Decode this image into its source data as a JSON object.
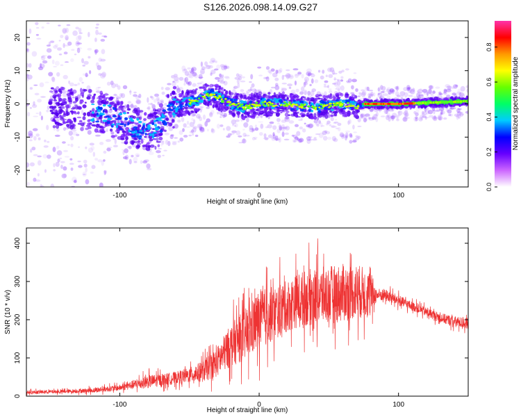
{
  "figure": {
    "title": "S126.2026.098.14.09.G27"
  },
  "chart_data": [
    {
      "type": "heatmap",
      "xlabel": "Height of straight line (km)",
      "ylabel": "Frequency (Hz)",
      "xlim": [
        -167,
        150
      ],
      "ylim": [
        -25,
        25
      ],
      "xticks": [
        -100,
        0,
        100
      ],
      "yticks": [
        -20,
        -10,
        0,
        10,
        20
      ],
      "colorbar": {
        "label": "Normalized spectral amplitude",
        "range": [
          0,
          0.95
        ],
        "ticks": [
          0.0,
          0.2,
          0.4,
          0.6,
          0.8
        ],
        "colors": [
          "#ffffff",
          "#cc66ff",
          "#6600ff",
          "#0000ff",
          "#00ccff",
          "#00ff66",
          "#66ff00",
          "#ffff00",
          "#ff9900",
          "#ff0000",
          "#ff33aa"
        ]
      },
      "ridge": [
        {
          "x": -140,
          "y": -1
        },
        {
          "x": -120,
          "y": -2
        },
        {
          "x": -110,
          "y": -3
        },
        {
          "x": -100,
          "y": -5
        },
        {
          "x": -90,
          "y": -7
        },
        {
          "x": -80,
          "y": -9
        },
        {
          "x": -72,
          "y": -7
        },
        {
          "x": -65,
          "y": -2
        },
        {
          "x": -55,
          "y": 0
        },
        {
          "x": -45,
          "y": 1
        },
        {
          "x": -35,
          "y": 3
        },
        {
          "x": -30,
          "y": 2
        },
        {
          "x": -20,
          "y": 0
        },
        {
          "x": -10,
          "y": -1
        },
        {
          "x": 0,
          "y": 0
        },
        {
          "x": 20,
          "y": 0
        },
        {
          "x": 40,
          "y": -1
        },
        {
          "x": 60,
          "y": 0
        },
        {
          "x": 72,
          "y": -1
        },
        {
          "x": 76,
          "y": 0
        },
        {
          "x": 100,
          "y": 0
        },
        {
          "x": 120,
          "y": 0.3
        },
        {
          "x": 150,
          "y": 0.8
        }
      ]
    },
    {
      "type": "line",
      "xlabel": "Height of straight line (km)",
      "ylabel": "SNR (10 * v/v)",
      "xlim": [
        -167,
        150
      ],
      "ylim": [
        0,
        440
      ],
      "xticks": [
        -100,
        0,
        100
      ],
      "yticks": [
        0,
        100,
        200,
        300,
        400
      ],
      "color": "#ee3333",
      "series": [
        {
          "x": [
            -167,
            -140,
            -120,
            -100,
            -90,
            -80,
            -70,
            -60,
            -50,
            -40,
            -30,
            -20,
            -10,
            0,
            10,
            20,
            30,
            40,
            50,
            60,
            70,
            80,
            84,
            90,
            100,
            110,
            120,
            130,
            140,
            150
          ],
          "y": [
            10,
            12,
            15,
            22,
            30,
            38,
            42,
            48,
            55,
            65,
            90,
            135,
            160,
            200,
            215,
            235,
            255,
            260,
            265,
            270,
            275,
            265,
            265,
            265,
            250,
            235,
            220,
            205,
            195,
            190
          ],
          "amplitude": [
            6,
            6,
            8,
            10,
            15,
            22,
            20,
            20,
            25,
            35,
            50,
            70,
            85,
            100,
            90,
            85,
            90,
            95,
            95,
            95,
            90,
            80,
            22,
            20,
            18,
            15,
            15,
            16,
            18,
            18
          ]
        }
      ]
    }
  ]
}
